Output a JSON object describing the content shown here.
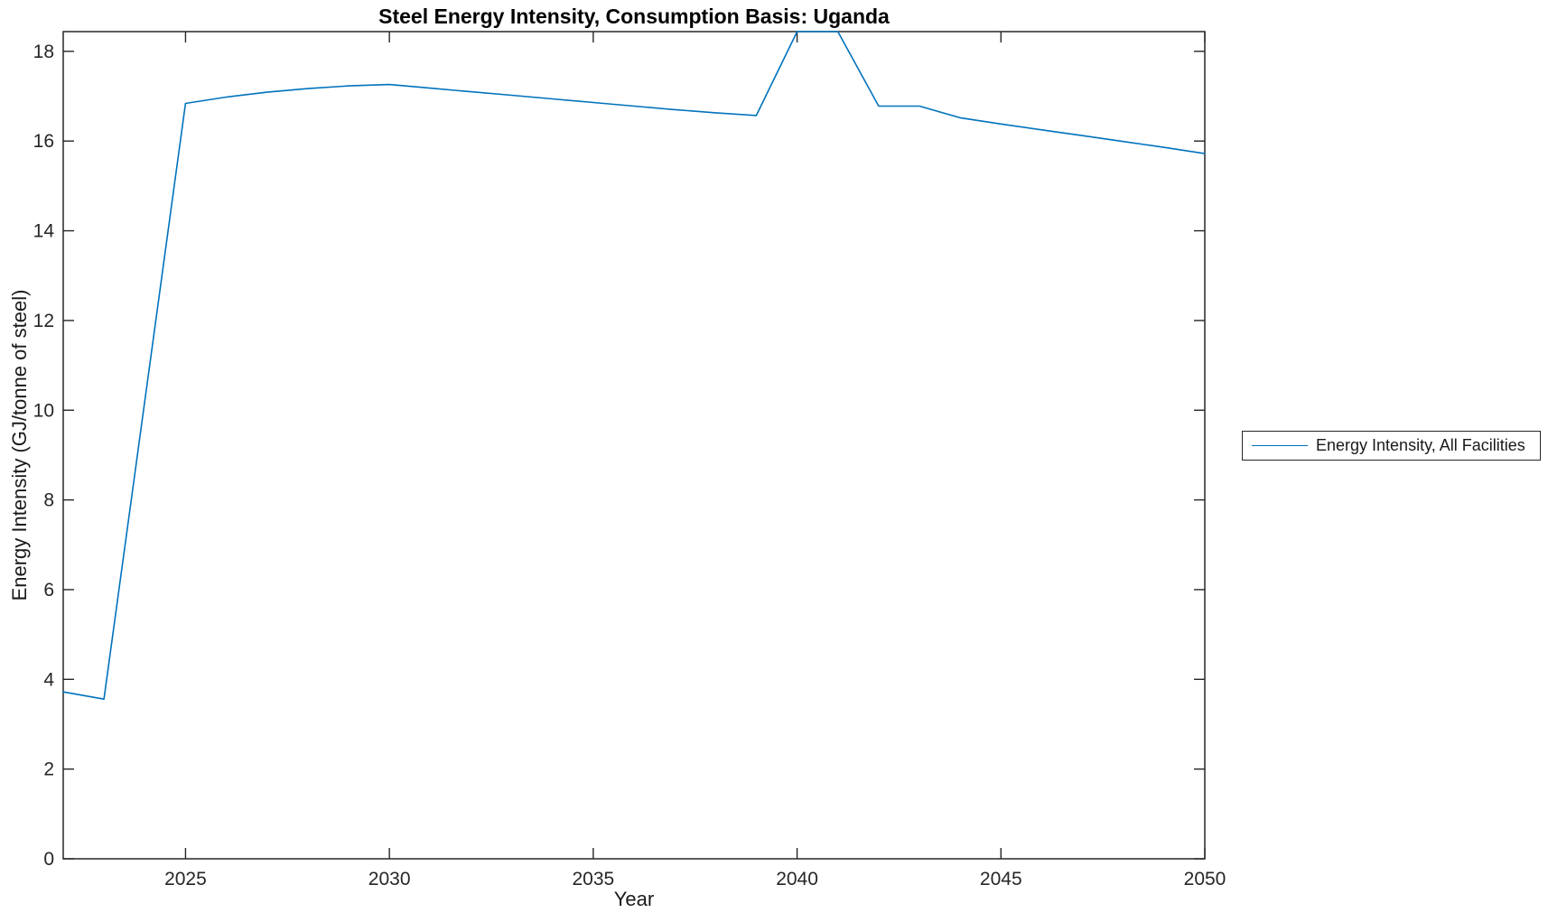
{
  "figure": {
    "background": "#ffffff"
  },
  "legend": {
    "label": "Energy Intensity, All Facilities",
    "position": "outside-right"
  },
  "colors": {
    "line": "#0072BD",
    "axes": "#262626",
    "title_text": "#000000",
    "label_text": "#1a1a1a"
  },
  "chart_data": {
    "type": "line",
    "title": "Steel Energy Intensity, Consumption Basis: Uganda",
    "xlabel": "Year",
    "ylabel": "Energy Intensity (GJ/tonne of steel)",
    "xlim": [
      2022,
      2050
    ],
    "ylim": [
      0,
      18.44
    ],
    "xticks": [
      2025,
      2030,
      2035,
      2040,
      2045,
      2050
    ],
    "yticks": [
      0,
      2,
      4,
      6,
      8,
      10,
      12,
      14,
      16,
      18
    ],
    "grid": false,
    "legend_position": "outside-right",
    "series": [
      {
        "name": "Energy Intensity, All Facilities",
        "color": "#0072BD",
        "x": [
          2022,
          2023,
          2024,
          2025,
          2026,
          2027,
          2028,
          2029,
          2030,
          2031,
          2032,
          2033,
          2034,
          2035,
          2036,
          2037,
          2038,
          2039,
          2040,
          2041,
          2042,
          2043,
          2044,
          2045,
          2046,
          2047,
          2048,
          2049,
          2050
        ],
        "y": [
          3.72,
          3.56,
          10.2,
          16.84,
          16.98,
          17.09,
          17.17,
          17.23,
          17.26,
          17.18,
          17.1,
          17.02,
          16.94,
          16.86,
          16.78,
          16.7,
          16.63,
          16.57,
          18.44,
          18.44,
          16.78,
          16.78,
          16.52,
          16.38,
          16.25,
          16.12,
          15.99,
          15.86,
          15.72
        ]
      }
    ]
  }
}
